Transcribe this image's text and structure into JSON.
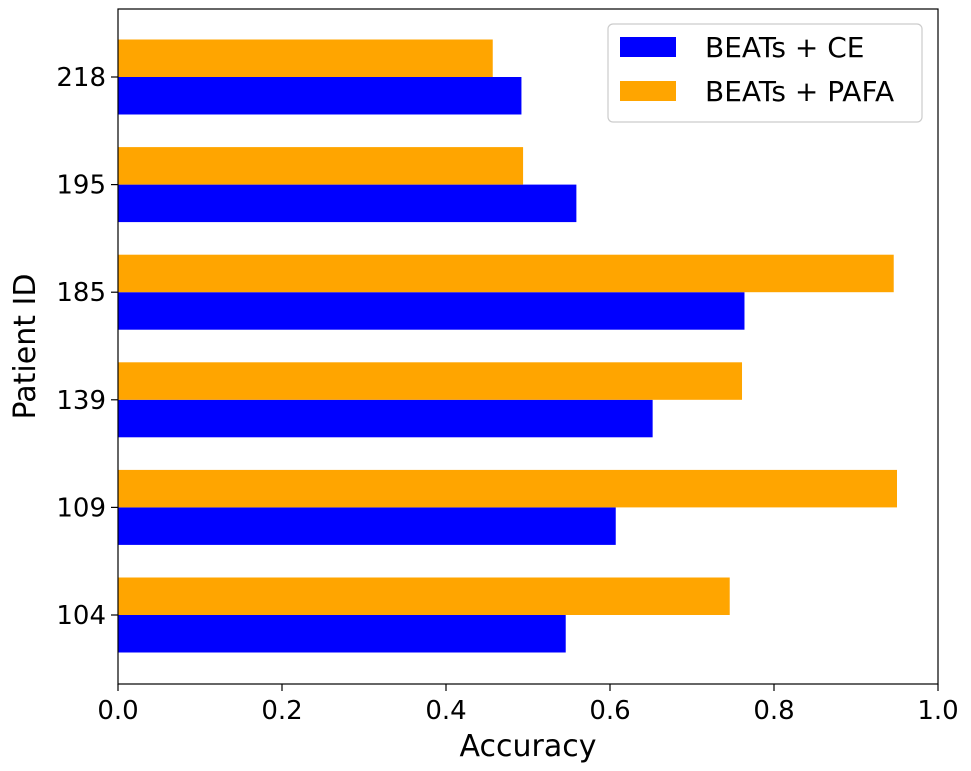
{
  "chart_data": {
    "type": "bar",
    "orientation": "horizontal",
    "categories": [
      "104",
      "109",
      "139",
      "185",
      "195",
      "218"
    ],
    "series": [
      {
        "name": "BEATs + CE",
        "color": "#0000ff",
        "values": [
          0.546,
          0.607,
          0.652,
          0.764,
          0.559,
          0.492
        ]
      },
      {
        "name": "BEATs + PAFA",
        "color": "#ffa500",
        "values": [
          0.746,
          0.95,
          0.761,
          0.946,
          0.494,
          0.457
        ]
      }
    ],
    "xlabel": "Accuracy",
    "ylabel": "Patient ID",
    "xlim": [
      0.0,
      1.0
    ],
    "xticks": [
      "0.0",
      "0.2",
      "0.4",
      "0.6",
      "0.8",
      "1.0"
    ],
    "grid": false,
    "legend_position": "top-right"
  }
}
